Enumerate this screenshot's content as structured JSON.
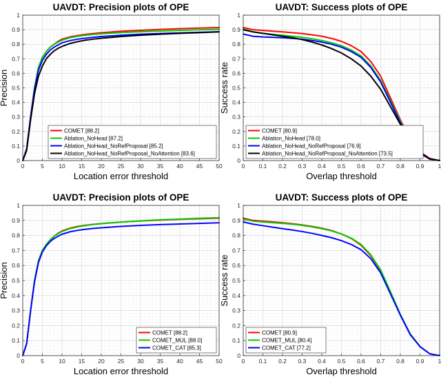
{
  "chart_data": [
    {
      "type": "line",
      "title": "UAVDT: Precision plots of OPE",
      "xlabel": "Location error threshold",
      "ylabel": "Precision",
      "xlim": [
        0,
        50
      ],
      "ylim": [
        0,
        1
      ],
      "xticks": [
        "0",
        "5",
        "10",
        "15",
        "20",
        "25",
        "30",
        "35",
        "40",
        "45",
        "50"
      ],
      "yticks": [
        "0",
        "0.1",
        "0.2",
        "0.3",
        "0.4",
        "0.5",
        "0.6",
        "0.7",
        "0.8",
        "0.9",
        "1"
      ],
      "grid": true,
      "legend_position": "bottom-right",
      "x": [
        0,
        1,
        2,
        3,
        4,
        5,
        6,
        7,
        8,
        9,
        10,
        12,
        14,
        16,
        18,
        20,
        25,
        30,
        35,
        40,
        45,
        50
      ],
      "series": [
        {
          "name": "COMET",
          "label": "COMET [88.2]",
          "color": "#ff0000",
          "values": [
            0.0,
            0.08,
            0.3,
            0.5,
            0.64,
            0.71,
            0.75,
            0.78,
            0.8,
            0.82,
            0.835,
            0.85,
            0.86,
            0.868,
            0.874,
            0.879,
            0.889,
            0.896,
            0.902,
            0.907,
            0.911,
            0.915
          ]
        },
        {
          "name": "Ablation_NoHead",
          "label": "Ablation_NoHead [87.2]",
          "color": "#00cc00",
          "values": [
            0.0,
            0.08,
            0.3,
            0.5,
            0.64,
            0.71,
            0.75,
            0.78,
            0.8,
            0.815,
            0.828,
            0.845,
            0.855,
            0.862,
            0.868,
            0.872,
            0.88,
            0.886,
            0.891,
            0.895,
            0.899,
            0.902
          ]
        },
        {
          "name": "Ablation_NoHead_NoRefProposal",
          "label": "Ablation_NoHead_NoRefProposal [85.2]",
          "color": "#0000ff",
          "values": [
            0.0,
            0.08,
            0.3,
            0.49,
            0.62,
            0.69,
            0.73,
            0.76,
            0.78,
            0.795,
            0.81,
            0.825,
            0.835,
            0.842,
            0.848,
            0.853,
            0.862,
            0.869,
            0.874,
            0.878,
            0.882,
            0.886
          ]
        },
        {
          "name": "Ablation_NoHead_NoRefProposal_NoAttention",
          "label": "Ablation_NoHead_NoRefProposal_NoAttention [83.6]",
          "color": "#000000",
          "values": [
            0.0,
            0.07,
            0.28,
            0.46,
            0.58,
            0.65,
            0.7,
            0.73,
            0.755,
            0.772,
            0.785,
            0.805,
            0.818,
            0.828,
            0.835,
            0.841,
            0.853,
            0.862,
            0.869,
            0.875,
            0.88,
            0.885
          ]
        }
      ]
    },
    {
      "type": "line",
      "title": "UAVDT: Success plots of OPE",
      "xlabel": "Overlap threshold",
      "ylabel": "Success rate",
      "xlim": [
        0,
        1
      ],
      "ylim": [
        0,
        1
      ],
      "xticks": [
        "0",
        "0.1",
        "0.2",
        "0.3",
        "0.4",
        "0.5",
        "0.6",
        "0.7",
        "0.8",
        "0.9",
        "1"
      ],
      "yticks": [
        "0",
        "0.1",
        "0.2",
        "0.3",
        "0.4",
        "0.5",
        "0.6",
        "0.7",
        "0.8",
        "0.9",
        "1"
      ],
      "grid": true,
      "legend_position": "bottom-left",
      "x": [
        0,
        0.05,
        0.1,
        0.15,
        0.2,
        0.25,
        0.3,
        0.35,
        0.4,
        0.45,
        0.5,
        0.55,
        0.6,
        0.65,
        0.7,
        0.75,
        0.8,
        0.85,
        0.9,
        0.95,
        1.0
      ],
      "series": [
        {
          "name": "COMET",
          "label": "COMET [80.9]",
          "color": "#ff0000",
          "values": [
            0.915,
            0.9,
            0.895,
            0.89,
            0.885,
            0.88,
            0.873,
            0.865,
            0.855,
            0.84,
            0.82,
            0.79,
            0.75,
            0.68,
            0.58,
            0.43,
            0.28,
            0.15,
            0.06,
            0.015,
            0.0
          ]
        },
        {
          "name": "Ablation_NoHead",
          "label": "Ablation_NoHead [78.0]",
          "color": "#00cc00",
          "values": [
            0.905,
            0.885,
            0.875,
            0.868,
            0.862,
            0.855,
            0.848,
            0.838,
            0.826,
            0.81,
            0.79,
            0.76,
            0.72,
            0.65,
            0.55,
            0.41,
            0.27,
            0.14,
            0.055,
            0.012,
            0.0
          ]
        },
        {
          "name": "Ablation_NoHead_NoRefProposal",
          "label": "Ablation_NoHead_NoRefProposal [76.9]",
          "color": "#0000ff",
          "values": [
            0.87,
            0.855,
            0.85,
            0.848,
            0.845,
            0.84,
            0.835,
            0.826,
            0.815,
            0.8,
            0.78,
            0.75,
            0.71,
            0.64,
            0.54,
            0.4,
            0.26,
            0.14,
            0.055,
            0.012,
            0.0
          ]
        },
        {
          "name": "Ablation_NoHead_NoRefProposal_NoAttention",
          "label": "Ablation_NoHead_NoRefProposal_NoAttention [73.5]",
          "color": "#000000",
          "values": [
            0.9,
            0.885,
            0.875,
            0.865,
            0.855,
            0.845,
            0.832,
            0.815,
            0.795,
            0.77,
            0.74,
            0.7,
            0.65,
            0.58,
            0.49,
            0.37,
            0.25,
            0.13,
            0.05,
            0.01,
            0.0
          ]
        }
      ]
    },
    {
      "type": "line",
      "title": "UAVDT: Precision plots of OPE",
      "xlabel": "Location error threshold",
      "ylabel": "Precision",
      "xlim": [
        0,
        50
      ],
      "ylim": [
        0,
        1
      ],
      "xticks": [
        "0",
        "5",
        "10",
        "15",
        "20",
        "25",
        "30",
        "35",
        "40",
        "45",
        "50"
      ],
      "yticks": [
        "0",
        "0.1",
        "0.2",
        "0.3",
        "0.4",
        "0.5",
        "0.6",
        "0.7",
        "0.8",
        "0.9",
        "1"
      ],
      "grid": true,
      "legend_position": "bottom-right",
      "x": [
        0,
        1,
        2,
        3,
        4,
        5,
        6,
        7,
        8,
        9,
        10,
        12,
        14,
        16,
        18,
        20,
        25,
        30,
        35,
        40,
        45,
        50
      ],
      "series": [
        {
          "name": "COMET",
          "label": "COMET [88.2]",
          "color": "#ff0000",
          "values": [
            0.0,
            0.08,
            0.3,
            0.5,
            0.63,
            0.7,
            0.74,
            0.77,
            0.795,
            0.815,
            0.83,
            0.848,
            0.86,
            0.868,
            0.874,
            0.879,
            0.889,
            0.896,
            0.902,
            0.907,
            0.911,
            0.915
          ]
        },
        {
          "name": "COMET_MUL",
          "label": "COMET_MUL [88.0]",
          "color": "#00cc00",
          "values": [
            0.0,
            0.08,
            0.3,
            0.5,
            0.63,
            0.7,
            0.74,
            0.77,
            0.795,
            0.812,
            0.826,
            0.845,
            0.857,
            0.866,
            0.873,
            0.878,
            0.889,
            0.897,
            0.904,
            0.909,
            0.914,
            0.918
          ]
        },
        {
          "name": "COMET_CAT",
          "label": "COMET_CAT [85.3]",
          "color": "#0000ff",
          "values": [
            0.0,
            0.08,
            0.3,
            0.49,
            0.62,
            0.69,
            0.73,
            0.76,
            0.78,
            0.795,
            0.808,
            0.824,
            0.834,
            0.841,
            0.847,
            0.851,
            0.86,
            0.867,
            0.872,
            0.876,
            0.88,
            0.884
          ]
        }
      ]
    },
    {
      "type": "line",
      "title": "UAVDT: Success plots of OPE",
      "xlabel": "Overlap threshold",
      "ylabel": "Success rate",
      "xlim": [
        0,
        1
      ],
      "ylim": [
        0,
        1
      ],
      "xticks": [
        "0",
        "0.1",
        "0.2",
        "0.3",
        "0.4",
        "0.5",
        "0.6",
        "0.7",
        "0.8",
        "0.9",
        "1"
      ],
      "yticks": [
        "0",
        "0.1",
        "0.2",
        "0.3",
        "0.4",
        "0.5",
        "0.6",
        "0.7",
        "0.8",
        "0.9",
        "1"
      ],
      "grid": true,
      "legend_position": "bottom-left",
      "x": [
        0,
        0.05,
        0.1,
        0.15,
        0.2,
        0.25,
        0.3,
        0.35,
        0.4,
        0.45,
        0.5,
        0.55,
        0.6,
        0.65,
        0.7,
        0.75,
        0.8,
        0.85,
        0.9,
        0.95,
        1.0
      ],
      "series": [
        {
          "name": "COMET",
          "label": "COMET [80.9]",
          "color": "#ff0000",
          "values": [
            0.915,
            0.9,
            0.895,
            0.89,
            0.885,
            0.878,
            0.87,
            0.86,
            0.848,
            0.832,
            0.81,
            0.78,
            0.735,
            0.665,
            0.565,
            0.42,
            0.27,
            0.145,
            0.06,
            0.012,
            0.0
          ]
        },
        {
          "name": "COMET_MUL",
          "label": "COMET_MUL [80.4]",
          "color": "#00cc00",
          "values": [
            0.91,
            0.895,
            0.89,
            0.885,
            0.88,
            0.875,
            0.867,
            0.857,
            0.845,
            0.83,
            0.81,
            0.782,
            0.74,
            0.67,
            0.57,
            0.425,
            0.275,
            0.145,
            0.06,
            0.012,
            0.0
          ]
        },
        {
          "name": "COMET_CAT",
          "label": "COMET_CAT [77.2]",
          "color": "#0000ff",
          "values": [
            0.89,
            0.875,
            0.865,
            0.855,
            0.845,
            0.836,
            0.826,
            0.814,
            0.8,
            0.785,
            0.765,
            0.74,
            0.705,
            0.645,
            0.55,
            0.41,
            0.27,
            0.14,
            0.06,
            0.012,
            0.0
          ]
        }
      ]
    }
  ]
}
